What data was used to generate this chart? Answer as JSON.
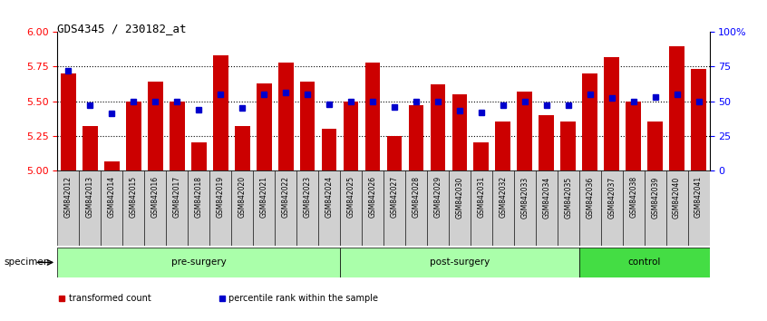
{
  "title": "GDS4345 / 230182_at",
  "samples": [
    "GSM842012",
    "GSM842013",
    "GSM842014",
    "GSM842015",
    "GSM842016",
    "GSM842017",
    "GSM842018",
    "GSM842019",
    "GSM842020",
    "GSM842021",
    "GSM842022",
    "GSM842023",
    "GSM842024",
    "GSM842025",
    "GSM842026",
    "GSM842027",
    "GSM842028",
    "GSM842029",
    "GSM842030",
    "GSM842031",
    "GSM842032",
    "GSM842033",
    "GSM842034",
    "GSM842035",
    "GSM842036",
    "GSM842037",
    "GSM842038",
    "GSM842039",
    "GSM842040",
    "GSM842041"
  ],
  "bar_values": [
    5.7,
    5.32,
    5.06,
    5.5,
    5.64,
    5.5,
    5.2,
    5.83,
    5.32,
    5.63,
    5.78,
    5.64,
    5.3,
    5.5,
    5.78,
    5.25,
    5.47,
    5.62,
    5.55,
    5.2,
    5.35,
    5.57,
    5.4,
    5.35,
    5.7,
    5.82,
    5.5,
    5.35,
    5.9,
    5.73
  ],
  "percentile_values": [
    72,
    47,
    41,
    50,
    50,
    50,
    44,
    55,
    45,
    55,
    56,
    55,
    48,
    50,
    50,
    46,
    50,
    50,
    43,
    42,
    47,
    50,
    47,
    47,
    55,
    52,
    50,
    53,
    55,
    50
  ],
  "groups": [
    {
      "label": "pre-surgery",
      "start": 0,
      "end": 13,
      "color": "#AAFFAA"
    },
    {
      "label": "post-surgery",
      "start": 13,
      "end": 24,
      "color": "#AAFFAA"
    },
    {
      "label": "control",
      "start": 24,
      "end": 30,
      "color": "#44DD44"
    }
  ],
  "bar_color": "#CC0000",
  "dot_color": "#0000CC",
  "ylim_left": [
    5.0,
    6.0
  ],
  "ylim_right": [
    0,
    100
  ],
  "yticks_left": [
    5.0,
    5.25,
    5.5,
    5.75,
    6.0
  ],
  "yticks_right": [
    0,
    25,
    50,
    75,
    100
  ],
  "ytick_labels_right": [
    "0",
    "25",
    "50",
    "75",
    "100%"
  ],
  "hlines": [
    5.25,
    5.5,
    5.75
  ],
  "legend_items": [
    {
      "label": "transformed count",
      "color": "#CC0000"
    },
    {
      "label": "percentile rank within the sample",
      "color": "#0000CC"
    }
  ],
  "specimen_label": "specimen",
  "bar_width": 0.7,
  "tick_box_color": "#D0D0D0",
  "fig_width": 8.46,
  "fig_height": 3.54
}
